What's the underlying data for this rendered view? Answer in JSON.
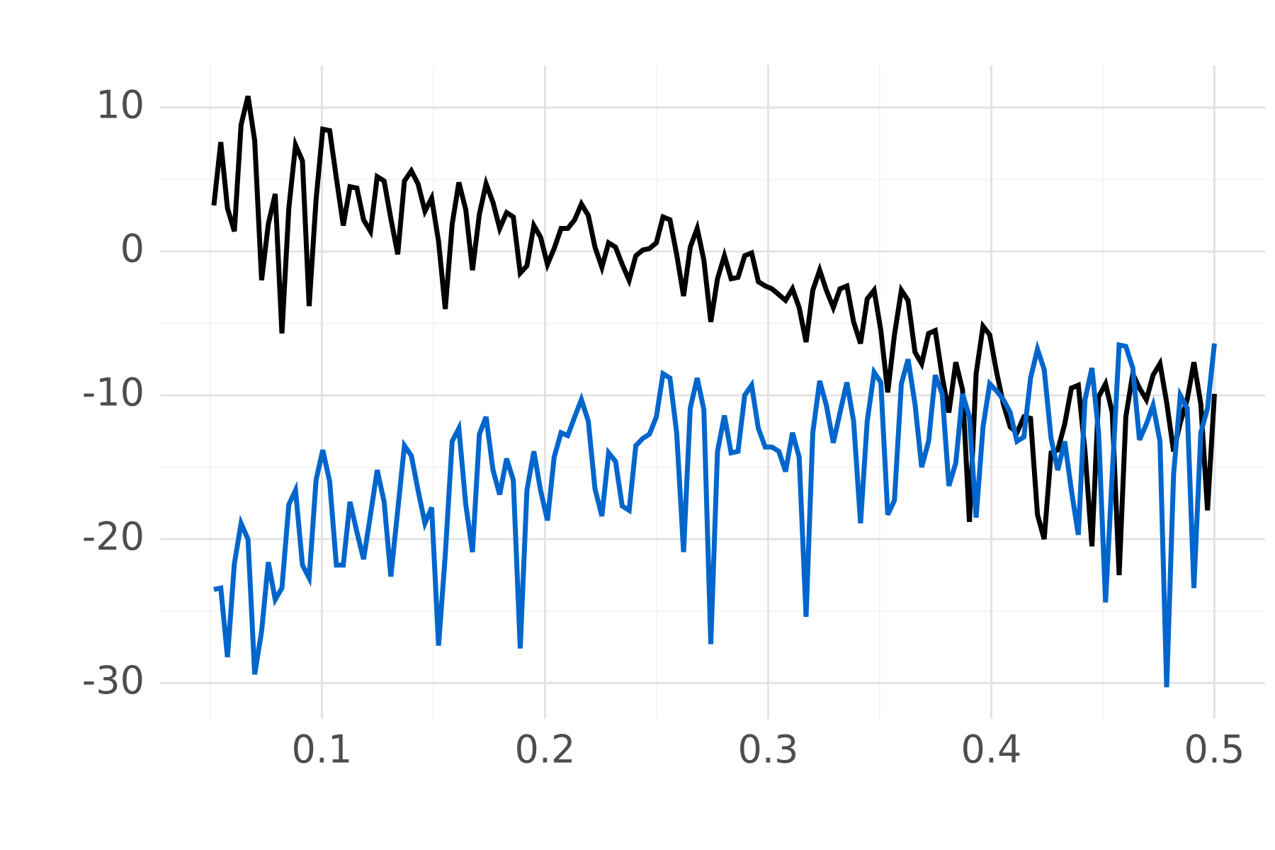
{
  "chart_data": {
    "type": "line",
    "x": [
      0.0516,
      0.0547,
      0.0577,
      0.0608,
      0.0638,
      0.0669,
      0.0699,
      0.073,
      0.076,
      0.0791,
      0.0821,
      0.0852,
      0.0882,
      0.0913,
      0.0943,
      0.0974,
      0.1004,
      0.1035,
      0.1065,
      0.1096,
      0.1126,
      0.1157,
      0.1187,
      0.1218,
      0.1248,
      0.1279,
      0.1309,
      0.134,
      0.137,
      0.1401,
      0.1431,
      0.1462,
      0.1492,
      0.1523,
      0.1553,
      0.1584,
      0.1614,
      0.1645,
      0.1675,
      0.1706,
      0.1736,
      0.1767,
      0.1797,
      0.1828,
      0.1858,
      0.1889,
      0.1919,
      0.195,
      0.198,
      0.2011,
      0.2041,
      0.2072,
      0.2102,
      0.2133,
      0.2163,
      0.2194,
      0.2224,
      0.2255,
      0.2285,
      0.2316,
      0.2346,
      0.2377,
      0.2407,
      0.2438,
      0.2468,
      0.2499,
      0.2529,
      0.256,
      0.259,
      0.2621,
      0.2651,
      0.2682,
      0.2712,
      0.2743,
      0.2773,
      0.2804,
      0.2834,
      0.2865,
      0.2895,
      0.2926,
      0.2956,
      0.2987,
      0.3017,
      0.3048,
      0.3078,
      0.3109,
      0.3139,
      0.317,
      0.32,
      0.3231,
      0.3261,
      0.3292,
      0.3322,
      0.3353,
      0.3383,
      0.3414,
      0.3444,
      0.3475,
      0.3505,
      0.3536,
      0.3566,
      0.3597,
      0.3627,
      0.3658,
      0.3688,
      0.3719,
      0.3749,
      0.378,
      0.381,
      0.3841,
      0.3871,
      0.3902,
      0.3932,
      0.3963,
      0.3993,
      0.4024,
      0.4054,
      0.4085,
      0.4115,
      0.4146,
      0.4176,
      0.4207,
      0.4237,
      0.4268,
      0.4298,
      0.4329,
      0.4359,
      0.439,
      0.442,
      0.4451,
      0.4481,
      0.4512,
      0.4542,
      0.4573,
      0.4603,
      0.4634,
      0.4664,
      0.4695,
      0.4725,
      0.4756,
      0.4786,
      0.4817,
      0.4847,
      0.4878,
      0.4908,
      0.4939,
      0.4969,
      0.5
    ],
    "series": [
      {
        "color": "#000000",
        "values": [
          3.2,
          7.6,
          3.0,
          1.4,
          8.8,
          10.8,
          7.7,
          -2.0,
          1.9,
          4.0,
          -5.7,
          3.0,
          7.4,
          6.3,
          -3.8,
          3.6,
          8.5,
          8.4,
          5.1,
          1.8,
          4.5,
          4.4,
          2.2,
          1.4,
          5.2,
          4.9,
          2.3,
          -0.2,
          4.9,
          5.6,
          4.7,
          2.8,
          3.7,
          0.7,
          -4.0,
          1.9,
          4.8,
          2.9,
          -1.3,
          2.6,
          4.7,
          3.4,
          1.6,
          2.7,
          2.4,
          -1.5,
          -1.0,
          1.8,
          1.0,
          -0.9,
          0.2,
          1.6,
          1.6,
          2.2,
          3.3,
          2.5,
          0.3,
          -1.1,
          0.6,
          0.3,
          -0.9,
          -2.0,
          -0.3,
          0.1,
          0.2,
          0.6,
          2.4,
          2.2,
          -0.2,
          -3.1,
          0.3,
          1.6,
          -0.6,
          -4.9,
          -1.9,
          -0.3,
          -1.9,
          -1.8,
          -0.3,
          -0.1,
          -2.1,
          -2.4,
          -2.6,
          -3.0,
          -3.4,
          -2.6,
          -3.9,
          -6.3,
          -2.7,
          -1.3,
          -2.7,
          -3.9,
          -2.6,
          -2.4,
          -4.9,
          -6.4,
          -3.3,
          -2.7,
          -5.5,
          -9.8,
          -5.8,
          -2.7,
          -3.4,
          -7.0,
          -7.8,
          -5.7,
          -5.5,
          -8.7,
          -11.2,
          -7.7,
          -9.6,
          -18.8,
          -8.5,
          -5.2,
          -5.8,
          -8.4,
          -10.6,
          -12.2,
          -12.6,
          -11.5,
          -11.6,
          -18.3,
          -20.0,
          -14.0,
          -13.8,
          -12.0,
          -9.5,
          -9.3,
          -13.9,
          -20.5,
          -10.1,
          -9.2,
          -11.2,
          -22.5,
          -11.5,
          -8.5,
          -9.5,
          -10.3,
          -8.6,
          -7.8,
          -10.5,
          -13.9,
          -11.9,
          -10.3,
          -7.7,
          -10.6,
          -18.0,
          -9.9
        ]
      },
      {
        "color": "#0066cc",
        "values": [
          -23.5,
          -23.4,
          -28.2,
          -21.7,
          -18.9,
          -20.0,
          -29.4,
          -26.4,
          -21.6,
          -24.2,
          -23.4,
          -17.6,
          -16.6,
          -21.8,
          -22.7,
          -15.9,
          -13.8,
          -16.0,
          -21.8,
          -21.8,
          -17.4,
          -19.5,
          -21.4,
          -18.3,
          -15.2,
          -17.4,
          -22.6,
          -18.0,
          -13.5,
          -14.2,
          -16.6,
          -18.9,
          -17.8,
          -27.4,
          -21.1,
          -13.2,
          -12.3,
          -17.6,
          -20.9,
          -12.7,
          -11.5,
          -15.2,
          -16.9,
          -14.4,
          -15.9,
          -27.6,
          -16.6,
          -13.9,
          -16.6,
          -18.7,
          -14.3,
          -12.6,
          -12.8,
          -11.5,
          -10.3,
          -11.8,
          -16.5,
          -18.4,
          -14.0,
          -14.6,
          -17.7,
          -18.0,
          -13.5,
          -13.0,
          -12.7,
          -11.5,
          -8.5,
          -8.8,
          -12.6,
          -20.9,
          -10.9,
          -8.8,
          -11.0,
          -27.3,
          -13.9,
          -11.4,
          -14.0,
          -13.9,
          -10.0,
          -9.3,
          -12.3,
          -13.6,
          -13.6,
          -13.9,
          -15.3,
          -12.6,
          -14.3,
          -25.4,
          -12.6,
          -9.0,
          -10.7,
          -13.3,
          -11.2,
          -9.1,
          -11.8,
          -18.9,
          -11.8,
          -8.4,
          -9.1,
          -18.3,
          -17.3,
          -9.2,
          -7.5,
          -10.6,
          -15.0,
          -13.2,
          -8.6,
          -9.9,
          -16.3,
          -14.7,
          -9.9,
          -11.5,
          -18.5,
          -12.2,
          -9.2,
          -9.7,
          -10.3,
          -11.2,
          -13.2,
          -12.9,
          -8.8,
          -6.8,
          -8.2,
          -13.0,
          -15.2,
          -13.2,
          -16.6,
          -19.7,
          -10.3,
          -8.1,
          -12.6,
          -24.4,
          -15.5,
          -6.5,
          -6.6,
          -8.1,
          -13.1,
          -12.0,
          -10.7,
          -13.2,
          -30.3,
          -15.5,
          -10.0,
          -10.9,
          -23.4,
          -12.6,
          -10.9,
          -6.4
        ]
      }
    ],
    "xlim": [
      0.0275,
      0.5227
    ],
    "xticks": [
      0.1,
      0.2,
      0.3,
      0.4,
      0.5
    ],
    "ylim": [
      -32.5,
      12.95
    ],
    "yticks": [
      -30,
      -20,
      -10,
      0,
      10
    ],
    "grid": true
  }
}
